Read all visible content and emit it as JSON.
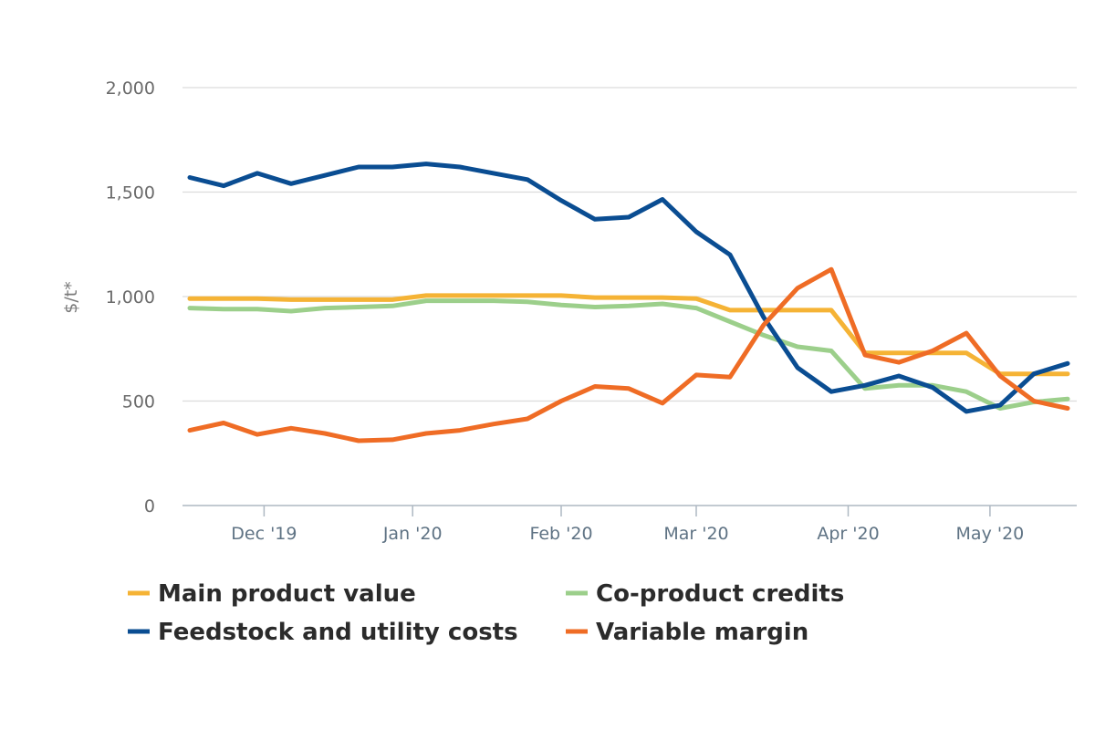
{
  "chart_data": {
    "type": "line",
    "title": "",
    "xlabel": "",
    "ylabel": "$/t*",
    "ylim": [
      0,
      2000
    ],
    "yticks": [
      {
        "value": 0,
        "label": "0"
      },
      {
        "value": 500,
        "label": "500"
      },
      {
        "value": 1000,
        "label": "1,000"
      },
      {
        "value": 1500,
        "label": "1,500"
      },
      {
        "value": 2000,
        "label": "2,000"
      }
    ],
    "xticks": [
      {
        "index": 2.2,
        "label": "Dec '19"
      },
      {
        "index": 6.6,
        "label": "Jan '20"
      },
      {
        "index": 11.0,
        "label": "Feb '20"
      },
      {
        "index": 15.0,
        "label": "Mar '20"
      },
      {
        "index": 19.5,
        "label": "Apr '20"
      },
      {
        "index": 23.7,
        "label": "May '20"
      }
    ],
    "grid": true,
    "legend_position": "bottom",
    "n_points": 27,
    "series": [
      {
        "name": "Main product value",
        "color": "#f5b335",
        "values": [
          990,
          990,
          990,
          985,
          985,
          985,
          985,
          1005,
          1005,
          1005,
          1005,
          1005,
          995,
          995,
          995,
          990,
          935,
          935,
          935,
          935,
          730,
          730,
          730,
          730,
          630,
          630,
          630
        ]
      },
      {
        "name": "Co-product credits",
        "color": "#9ccf8b",
        "values": [
          945,
          940,
          940,
          930,
          945,
          950,
          955,
          980,
          980,
          980,
          975,
          960,
          950,
          955,
          965,
          945,
          880,
          815,
          760,
          740,
          560,
          575,
          575,
          545,
          465,
          495,
          510
        ]
      },
      {
        "name": "Feedstock and utility costs",
        "color": "#0a4d92",
        "values": [
          1570,
          1530,
          1590,
          1540,
          1580,
          1620,
          1620,
          1635,
          1620,
          1590,
          1560,
          1460,
          1370,
          1380,
          1465,
          1310,
          1200,
          900,
          660,
          545,
          575,
          620,
          565,
          450,
          480,
          630,
          680
        ]
      },
      {
        "name": "Variable margin",
        "color": "#ef6c25",
        "values": [
          360,
          395,
          340,
          370,
          345,
          310,
          315,
          345,
          360,
          390,
          415,
          500,
          570,
          560,
          490,
          625,
          615,
          865,
          1040,
          1130,
          720,
          685,
          740,
          825,
          620,
          500,
          465
        ]
      }
    ]
  }
}
